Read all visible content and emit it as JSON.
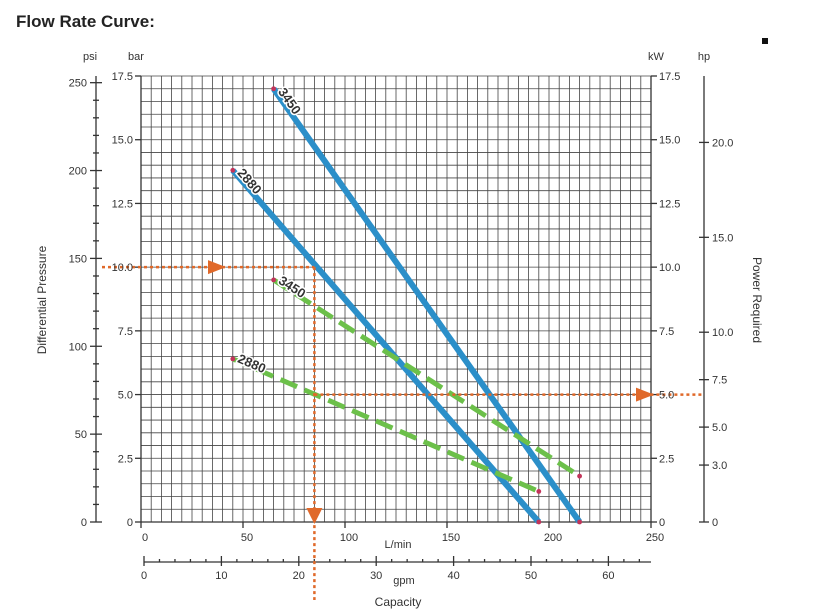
{
  "page": {
    "title": "Flow Rate Curve:"
  },
  "chart_data": {
    "type": "line",
    "axes": {
      "psi": {
        "label": "psi",
        "ticks": [
          "0",
          "50",
          "100",
          "150",
          "200",
          "250"
        ],
        "range": [
          0,
          253.8
        ]
      },
      "bar": {
        "label": "bar",
        "ticks": [
          "0",
          "2.5",
          "5.0",
          "7.5",
          "10.0",
          "12.5",
          "15.0",
          "17.5"
        ],
        "range": [
          0,
          17.5
        ]
      },
      "kw": {
        "label": "kW",
        "ticks": [
          "0",
          "2.5",
          "5.0",
          "7.5",
          "10.0",
          "12.5",
          "15.0",
          "17.5"
        ],
        "range": [
          0,
          17.5
        ]
      },
      "hp": {
        "label": "hp",
        "ticks": [
          "0",
          "3.0",
          "5.0",
          "7.5",
          "10.0",
          "15.0",
          "20.0"
        ],
        "range": [
          0,
          23.5
        ]
      },
      "lmin": {
        "label": "L/min",
        "ticks": [
          "0",
          "50",
          "100",
          "150",
          "200",
          "250"
        ],
        "range": [
          0,
          250
        ]
      },
      "gpm": {
        "label": "gpm",
        "ticks": [
          "0",
          "10",
          "20",
          "30",
          "40",
          "50",
          "60"
        ],
        "range": [
          0,
          66
        ]
      }
    },
    "ylabel_left": "Differential Pressure",
    "ylabel_right": "Power Required",
    "xlabel": "Capacity",
    "grid": true,
    "series": [
      {
        "name": "3450",
        "kind": "pressure",
        "color": "#2b8fc9",
        "style": "solid",
        "points": [
          [
            65,
            17.0
          ],
          [
            215,
            0.0
          ]
        ]
      },
      {
        "name": "2880",
        "kind": "pressure",
        "color": "#2b8fc9",
        "style": "solid",
        "points": [
          [
            45,
            13.8
          ],
          [
            195,
            0.0
          ]
        ]
      },
      {
        "name": "3450",
        "kind": "power",
        "color": "#6cc04a",
        "style": "dashed",
        "points": [
          [
            65,
            9.5
          ],
          [
            215,
            1.8
          ]
        ]
      },
      {
        "name": "2880",
        "kind": "power",
        "color": "#6cc04a",
        "style": "dashed",
        "points": [
          [
            45,
            6.4
          ],
          [
            195,
            1.2
          ]
        ]
      }
    ],
    "guides": {
      "color": "#e0692a",
      "pressure_bar": 10.0,
      "flow_lmin": 85,
      "power_kw": 5.0
    }
  }
}
